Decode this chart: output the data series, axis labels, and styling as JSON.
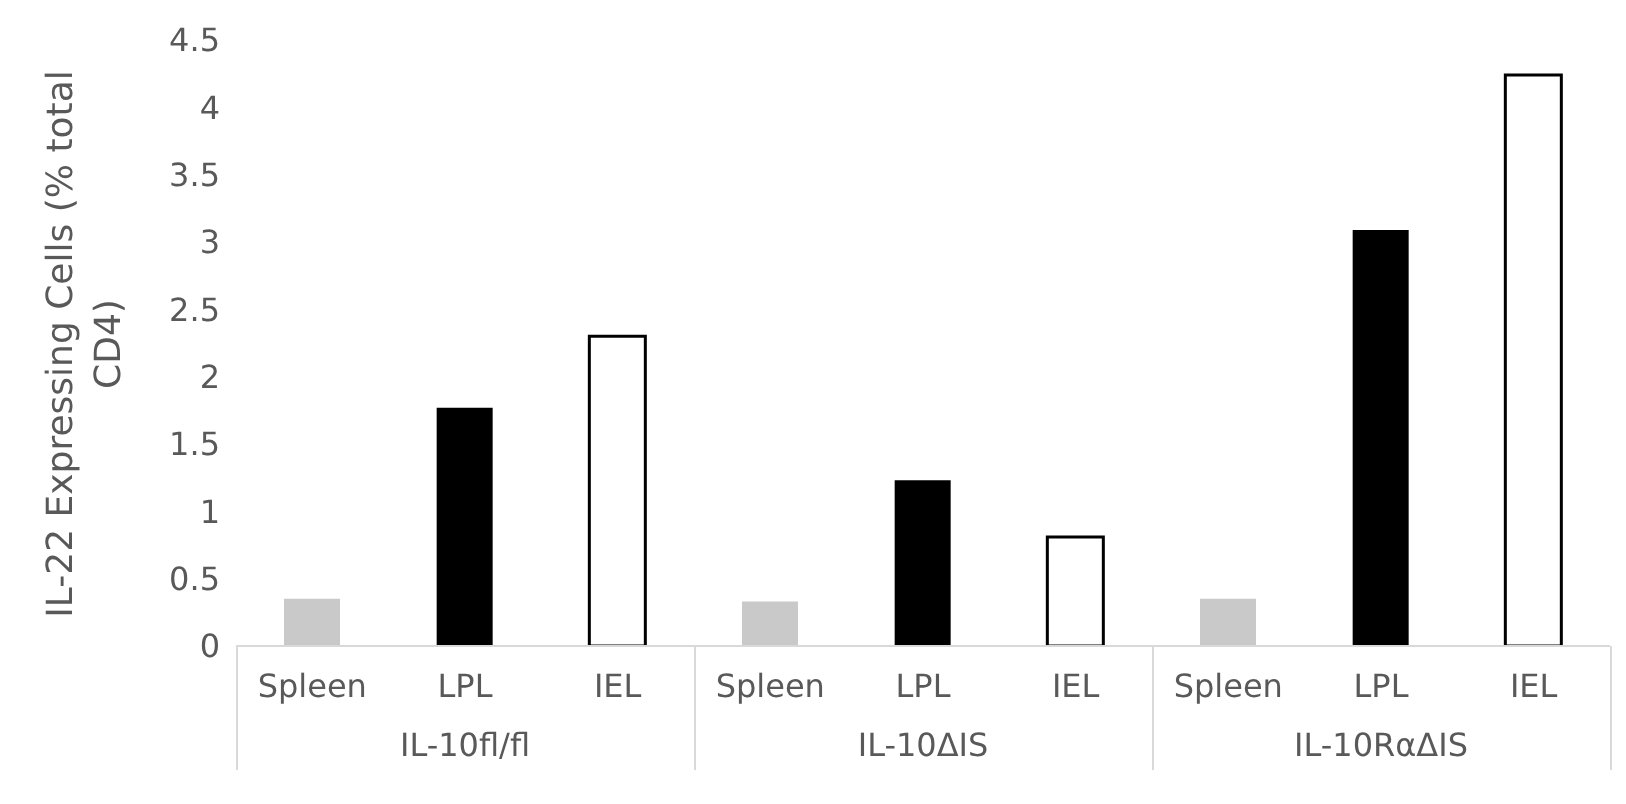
{
  "chart_data": {
    "type": "bar",
    "ylabel": "IL-22 Expressing Cells (% total CD4)",
    "categories": [
      "Spleen",
      "LPL",
      "IEL",
      "Spleen",
      "LPL",
      "IEL",
      "Spleen",
      "LPL",
      "IEL"
    ],
    "values": [
      0.35,
      1.77,
      2.3,
      0.33,
      1.23,
      0.81,
      0.35,
      3.09,
      4.24
    ],
    "colors": [
      "#c9c9c9",
      "#000000",
      "#ffffff",
      "#c9c9c9",
      "#000000",
      "#ffffff",
      "#c9c9c9",
      "#000000",
      "#ffffff"
    ],
    "ylim": [
      0,
      4.5
    ],
    "yticks": [
      0,
      0.5,
      1,
      1.5,
      2,
      2.5,
      3,
      3.5,
      4,
      4.5
    ],
    "grid": false,
    "legend": false,
    "annotations": [
      "IL-10fl/fl",
      "IL-10ΔIS",
      "IL-10RαΔIS"
    ]
  }
}
